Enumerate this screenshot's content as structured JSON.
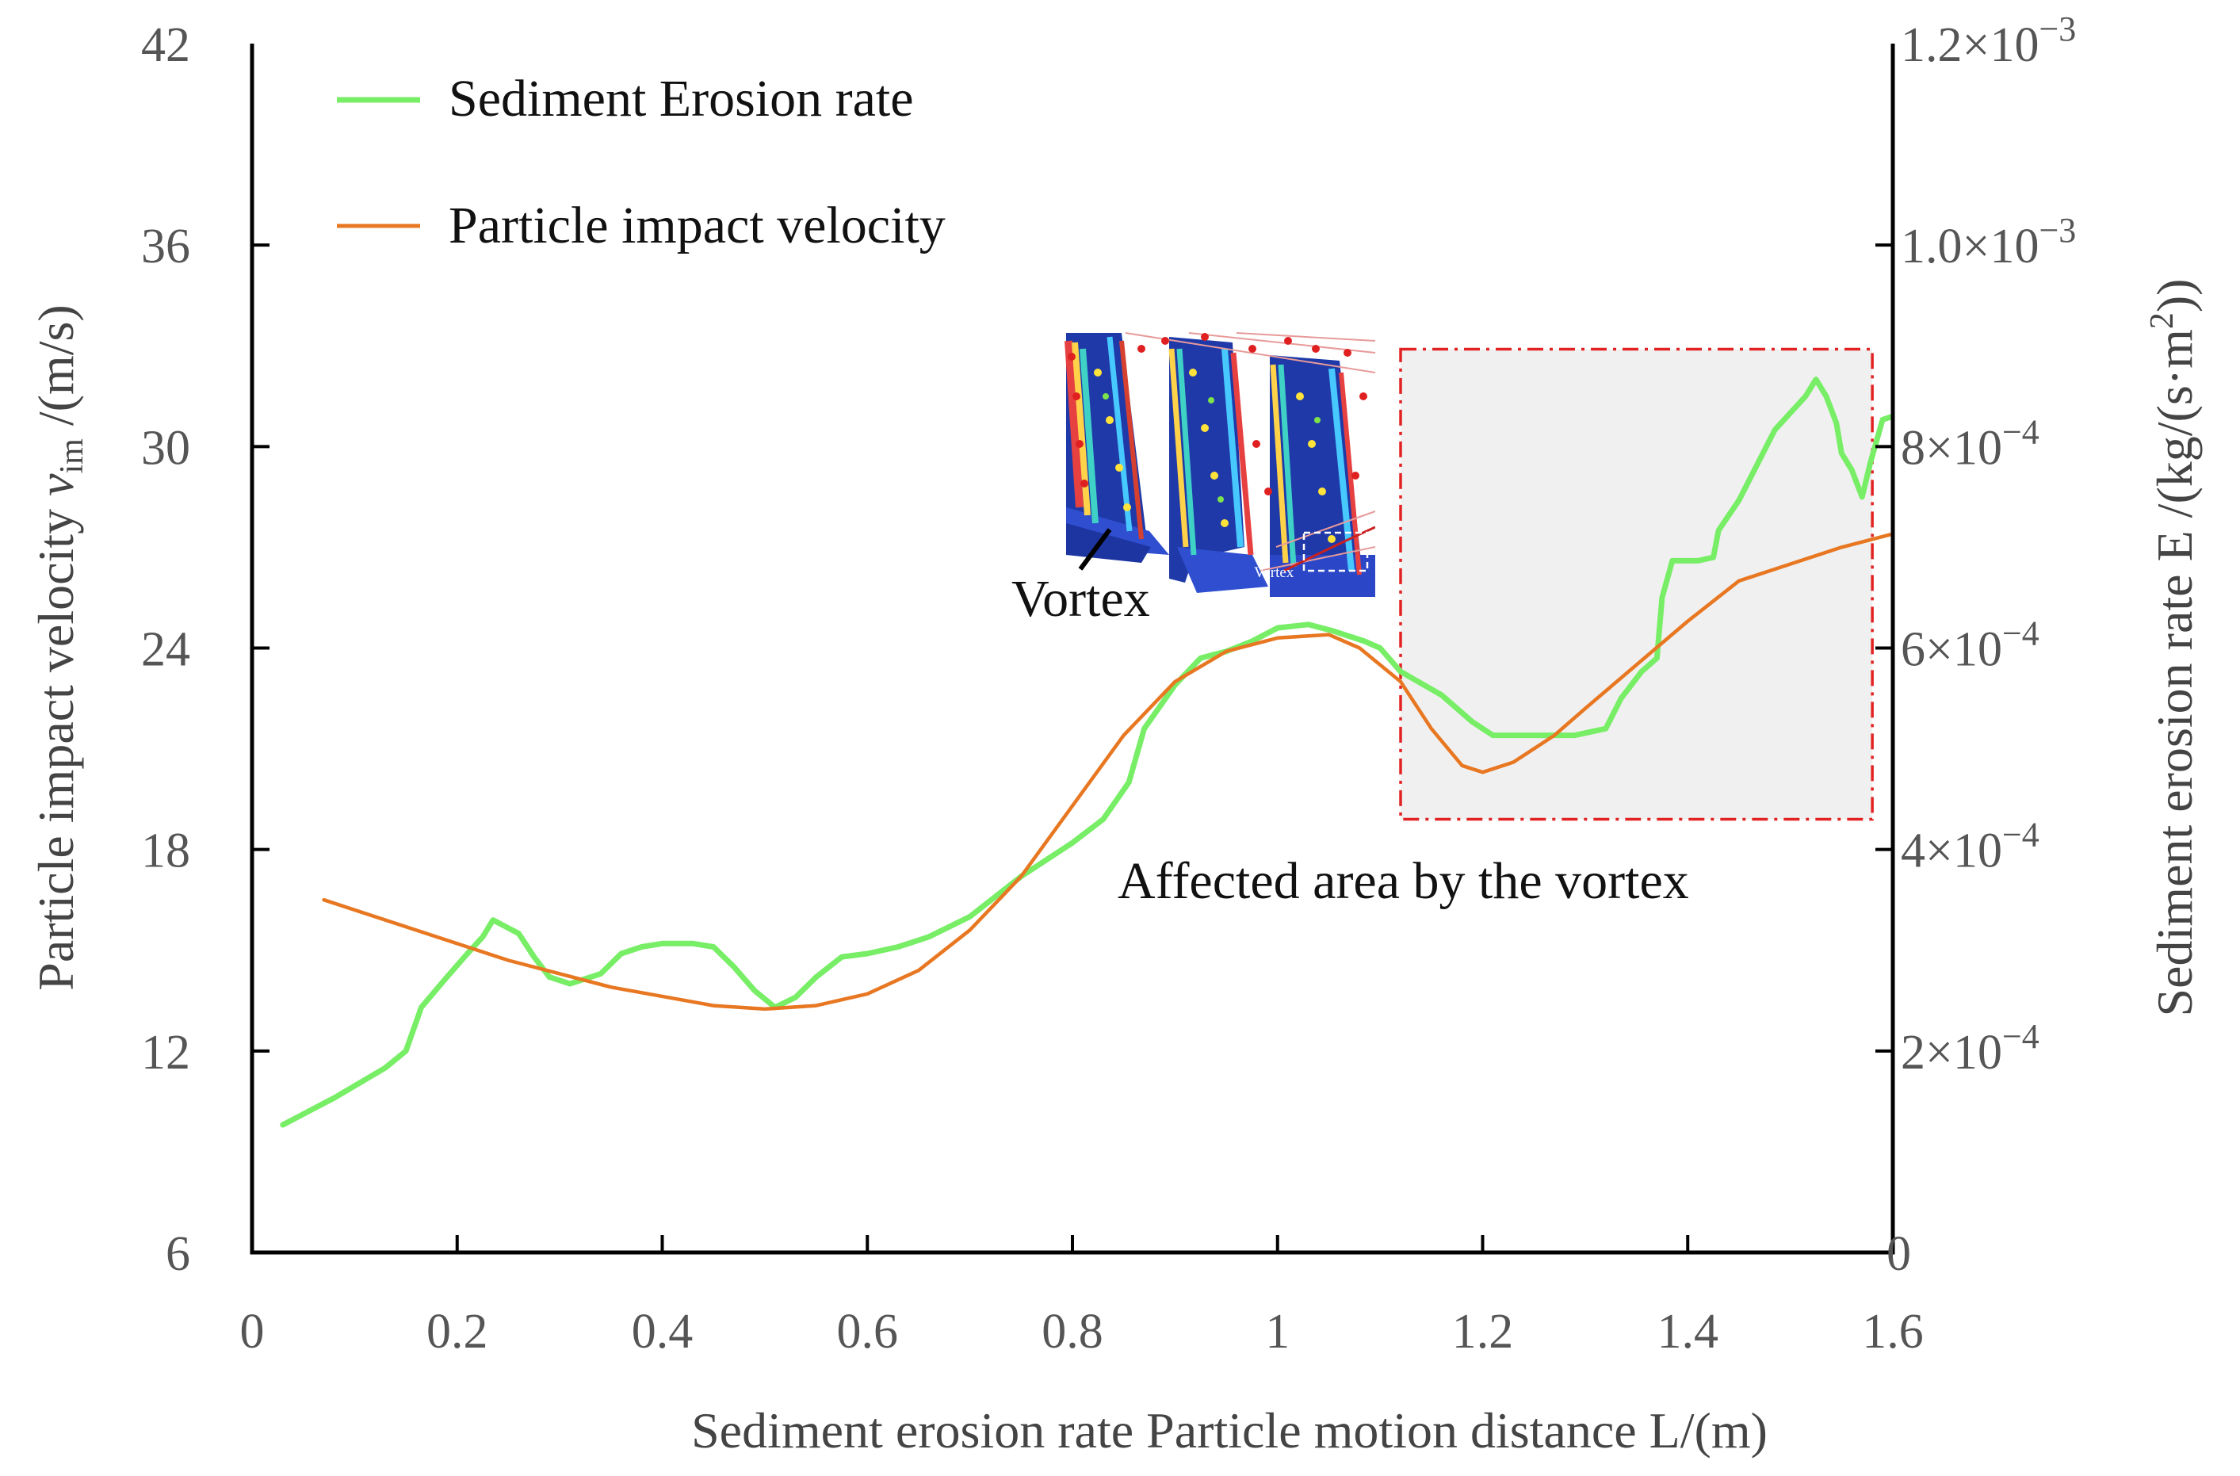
{
  "chart_data": {
    "type": "line",
    "xlabel": "Sediment erosion rate Particle motion distance L/(m)",
    "ylabel_left": {
      "main": "Particle impact velocity ",
      "italic": "v",
      "sub": "im",
      "unit": " /(m/s)"
    },
    "ylabel_right": {
      "main": "Sediment erosion rate E /(kg/(s·m",
      "sup": "2",
      "end": "))"
    },
    "xlim": [
      0,
      1.6
    ],
    "ylim_left": [
      6,
      42
    ],
    "ylim_right": [
      0,
      0.0012
    ],
    "x_ticks": [
      "0",
      "0.2",
      "0.4",
      "0.6",
      "0.8",
      "1",
      "1.2",
      "1.4",
      "1.6"
    ],
    "y_left_ticks": [
      "6",
      "12",
      "18",
      "24",
      "30",
      "36",
      "42"
    ],
    "y_right_ticks": [
      {
        "value": 0,
        "base": "0",
        "exp": ""
      },
      {
        "value": 0.0002,
        "base": "2×10",
        "exp": "−4"
      },
      {
        "value": 0.0004,
        "base": "4×10",
        "exp": "−4"
      },
      {
        "value": 0.0006,
        "base": "6×10",
        "exp": "−4"
      },
      {
        "value": 0.0008,
        "base": "8×10",
        "exp": "−4"
      },
      {
        "value": 0.001,
        "base": "1.0×10",
        "exp": "−3"
      },
      {
        "value": 0.0012,
        "base": "1.2×10",
        "exp": "−3"
      }
    ],
    "series": [
      {
        "name": "Sediment Erosion rate",
        "axis": "left",
        "color": "#77ee66",
        "points": [
          [
            0.03,
            9.8
          ],
          [
            0.08,
            10.6
          ],
          [
            0.13,
            11.5
          ],
          [
            0.15,
            12.0
          ],
          [
            0.165,
            13.3
          ],
          [
            0.19,
            14.2
          ],
          [
            0.21,
            14.9
          ],
          [
            0.225,
            15.4
          ],
          [
            0.235,
            15.9
          ],
          [
            0.26,
            15.5
          ],
          [
            0.275,
            14.8
          ],
          [
            0.29,
            14.2
          ],
          [
            0.31,
            14.0
          ],
          [
            0.34,
            14.3
          ],
          [
            0.36,
            14.9
          ],
          [
            0.38,
            15.1
          ],
          [
            0.4,
            15.2
          ],
          [
            0.43,
            15.2
          ],
          [
            0.45,
            15.1
          ],
          [
            0.47,
            14.5
          ],
          [
            0.49,
            13.8
          ],
          [
            0.51,
            13.3
          ],
          [
            0.53,
            13.6
          ],
          [
            0.55,
            14.2
          ],
          [
            0.575,
            14.8
          ],
          [
            0.6,
            14.9
          ],
          [
            0.63,
            15.1
          ],
          [
            0.66,
            15.4
          ],
          [
            0.7,
            16.0
          ],
          [
            0.75,
            17.2
          ],
          [
            0.8,
            18.2
          ],
          [
            0.83,
            18.9
          ],
          [
            0.855,
            20.0
          ],
          [
            0.87,
            21.6
          ],
          [
            0.9,
            22.9
          ],
          [
            0.925,
            23.7
          ],
          [
            0.95,
            23.9
          ],
          [
            0.975,
            24.2
          ],
          [
            1.0,
            24.6
          ],
          [
            1.03,
            24.7
          ],
          [
            1.055,
            24.5
          ],
          [
            1.085,
            24.2
          ],
          [
            1.1,
            24.0
          ],
          [
            1.12,
            23.3
          ],
          [
            1.16,
            22.6
          ],
          [
            1.19,
            21.8
          ],
          [
            1.21,
            21.4
          ],
          [
            1.25,
            21.4
          ],
          [
            1.29,
            21.4
          ],
          [
            1.32,
            21.6
          ],
          [
            1.335,
            22.5
          ],
          [
            1.355,
            23.3
          ],
          [
            1.37,
            23.7
          ],
          [
            1.375,
            25.5
          ],
          [
            1.385,
            26.6
          ],
          [
            1.41,
            26.6
          ],
          [
            1.425,
            26.7
          ],
          [
            1.43,
            27.5
          ],
          [
            1.45,
            28.4
          ],
          [
            1.47,
            29.6
          ],
          [
            1.485,
            30.5
          ],
          [
            1.5,
            31.0
          ],
          [
            1.515,
            31.5
          ],
          [
            1.525,
            32.0
          ],
          [
            1.535,
            31.5
          ],
          [
            1.545,
            30.7
          ],
          [
            1.55,
            29.8
          ],
          [
            1.56,
            29.3
          ],
          [
            1.57,
            28.5
          ],
          [
            1.578,
            29.5
          ],
          [
            1.59,
            30.8
          ],
          [
            1.61,
            31.0
          ],
          [
            1.62,
            31.6
          ]
        ]
      },
      {
        "name": "Particle impact velocity",
        "axis": "left",
        "color": "#e87722",
        "points": [
          [
            0.07,
            16.5
          ],
          [
            0.15,
            15.7
          ],
          [
            0.25,
            14.7
          ],
          [
            0.35,
            13.9
          ],
          [
            0.45,
            13.35
          ],
          [
            0.5,
            13.25
          ],
          [
            0.55,
            13.35
          ],
          [
            0.6,
            13.7
          ],
          [
            0.65,
            14.4
          ],
          [
            0.7,
            15.6
          ],
          [
            0.75,
            17.2
          ],
          [
            0.8,
            19.3
          ],
          [
            0.85,
            21.4
          ],
          [
            0.9,
            23.0
          ],
          [
            0.95,
            23.9
          ],
          [
            1.0,
            24.3
          ],
          [
            1.05,
            24.4
          ],
          [
            1.08,
            24.0
          ],
          [
            1.12,
            23.0
          ],
          [
            1.15,
            21.6
          ],
          [
            1.18,
            20.5
          ],
          [
            1.2,
            20.3
          ],
          [
            1.23,
            20.6
          ],
          [
            1.27,
            21.4
          ],
          [
            1.3,
            22.2
          ],
          [
            1.35,
            23.5
          ],
          [
            1.4,
            24.8
          ],
          [
            1.45,
            26.0
          ],
          [
            1.5,
            26.5
          ],
          [
            1.55,
            27.0
          ],
          [
            1.6,
            27.4
          ],
          [
            1.62,
            27.6
          ]
        ]
      }
    ],
    "legend": {
      "placement": "top-left",
      "entries": [
        "Sediment Erosion rate",
        "Particle impact velocity"
      ]
    },
    "annotations": {
      "region_label": "Affected area by the vortex",
      "region_x": [
        1.12,
        1.58
      ],
      "region_y": [
        18.9,
        32.9
      ],
      "inset_label": "Vortex",
      "inset_small_label": "Vortex"
    },
    "grid": false
  }
}
